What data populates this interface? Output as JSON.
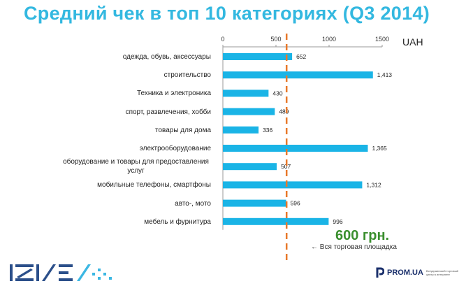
{
  "title": "Средний чек в топ 10 категориях (Q3 2014)",
  "unit_label": "UAH",
  "reference": {
    "value": 600,
    "value_text": "600 грн.",
    "note": "Вся торговая площадка",
    "color": "#e8782a"
  },
  "footer": {
    "brand": "PROM.UA",
    "tagline": "Всеукраинский торговый центр в интернете"
  },
  "chart_data": {
    "type": "bar",
    "orientation": "horizontal",
    "title": "Средний чек в топ 10 категориях (Q3 2014)",
    "xlim": [
      0,
      1500
    ],
    "x_ticks": [
      0,
      500,
      1000,
      1500
    ],
    "axis_position": "top",
    "bar_color": "#1ab4e6",
    "categories": [
      "одежда, обувь, аксессуары",
      "строительство",
      "Техника и электроника",
      "спорт, развлечения, хобби",
      "товары для дома",
      "электрооборудование",
      "оборудование и товары для предоставления услуг",
      "мобильные телефоны, смартфоны",
      "авто-, мото",
      "мебель и фурнитура"
    ],
    "values": [
      652,
      1413,
      430,
      489,
      336,
      1365,
      507,
      1312,
      596,
      996
    ],
    "value_labels": [
      "652",
      "1,413",
      "430",
      "489",
      "336",
      "1,365",
      "507",
      "1,312",
      "596",
      "996"
    ]
  }
}
